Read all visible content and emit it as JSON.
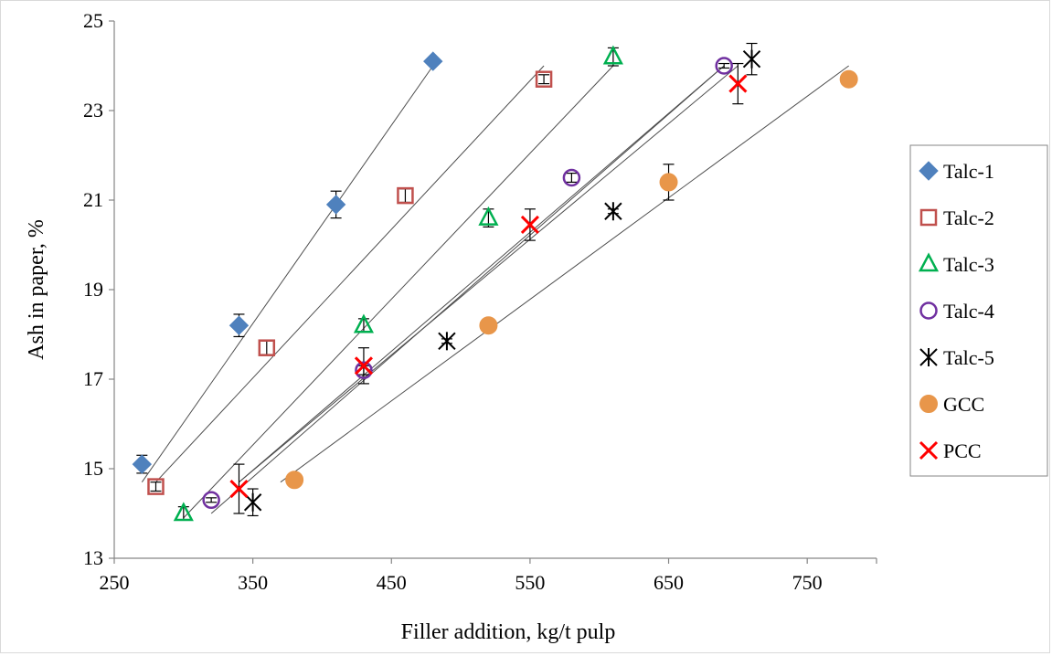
{
  "chart_data": {
    "type": "scatter",
    "xlabel": "Filler addition, kg/t pulp",
    "ylabel": "Ash in paper, %",
    "xlim": [
      250,
      800
    ],
    "ylim": [
      13,
      25
    ],
    "xticks": [
      250,
      350,
      450,
      550,
      650,
      750
    ],
    "yticks": [
      13,
      15,
      17,
      19,
      21,
      23,
      25
    ],
    "grid": false,
    "legend_position": "right",
    "trendlines": true,
    "series": [
      {
        "name": "Talc-1",
        "marker": "diamond",
        "color": "#4f81bd",
        "x": [
          270,
          340,
          410,
          480
        ],
        "y": [
          15.1,
          18.2,
          20.9,
          24.1
        ],
        "yerr": [
          0.2,
          0.25,
          0.3,
          0.05
        ],
        "trend": [
          [
            270,
            14.7
          ],
          [
            480,
            24.0
          ]
        ]
      },
      {
        "name": "Talc-2",
        "marker": "square-open",
        "color": "#c0504d",
        "x": [
          280,
          360,
          460,
          560
        ],
        "y": [
          14.6,
          17.7,
          21.1,
          23.7
        ],
        "yerr": [
          0.1,
          0.15,
          0.15,
          0.1
        ],
        "trend": [
          [
            280,
            14.7
          ],
          [
            560,
            24.0
          ]
        ]
      },
      {
        "name": "Talc-3",
        "marker": "triangle-open",
        "color": "#00b050",
        "x": [
          300,
          430,
          520,
          610
        ],
        "y": [
          14.0,
          18.2,
          20.6,
          24.2
        ],
        "yerr": [
          0.15,
          0.15,
          0.2,
          0.2
        ],
        "trend": [
          [
            300,
            13.9
          ],
          [
            610,
            24.0
          ]
        ]
      },
      {
        "name": "Talc-4",
        "marker": "circle-open",
        "color": "#7030a0",
        "x": [
          320,
          430,
          580,
          690
        ],
        "y": [
          14.3,
          17.2,
          21.5,
          24.0
        ],
        "yerr": [
          0.05,
          0.1,
          0.1,
          0.05
        ],
        "trend": [
          [
            320,
            14.0
          ],
          [
            690,
            24.0
          ]
        ]
      },
      {
        "name": "Talc-5",
        "marker": "star",
        "color": "#000000",
        "x": [
          350,
          490,
          610,
          710
        ],
        "y": [
          14.25,
          17.85,
          20.75,
          24.15
        ],
        "yerr": [
          0.3,
          0.05,
          0.05,
          0.35
        ],
        "trend": [
          [
            340,
            14.7
          ],
          [
            700,
            24.0
          ]
        ]
      },
      {
        "name": "GCC",
        "marker": "circle-filled",
        "color": "#e8964a",
        "x": [
          380,
          520,
          650,
          780
        ],
        "y": [
          14.75,
          18.2,
          21.4,
          23.7
        ],
        "yerr": [
          0,
          0,
          0.4,
          0
        ],
        "trend": [
          [
            370,
            14.7
          ],
          [
            780,
            24.0
          ]
        ]
      },
      {
        "name": "PCC",
        "marker": "x",
        "color": "#ff0000",
        "x": [
          340,
          430,
          550,
          700
        ],
        "y": [
          14.55,
          17.3,
          20.45,
          23.6
        ],
        "yerr": [
          0.55,
          0.4,
          0.35,
          0.45
        ],
        "trend": [
          [
            340,
            14.7
          ],
          [
            690,
            24.0
          ]
        ]
      }
    ]
  }
}
